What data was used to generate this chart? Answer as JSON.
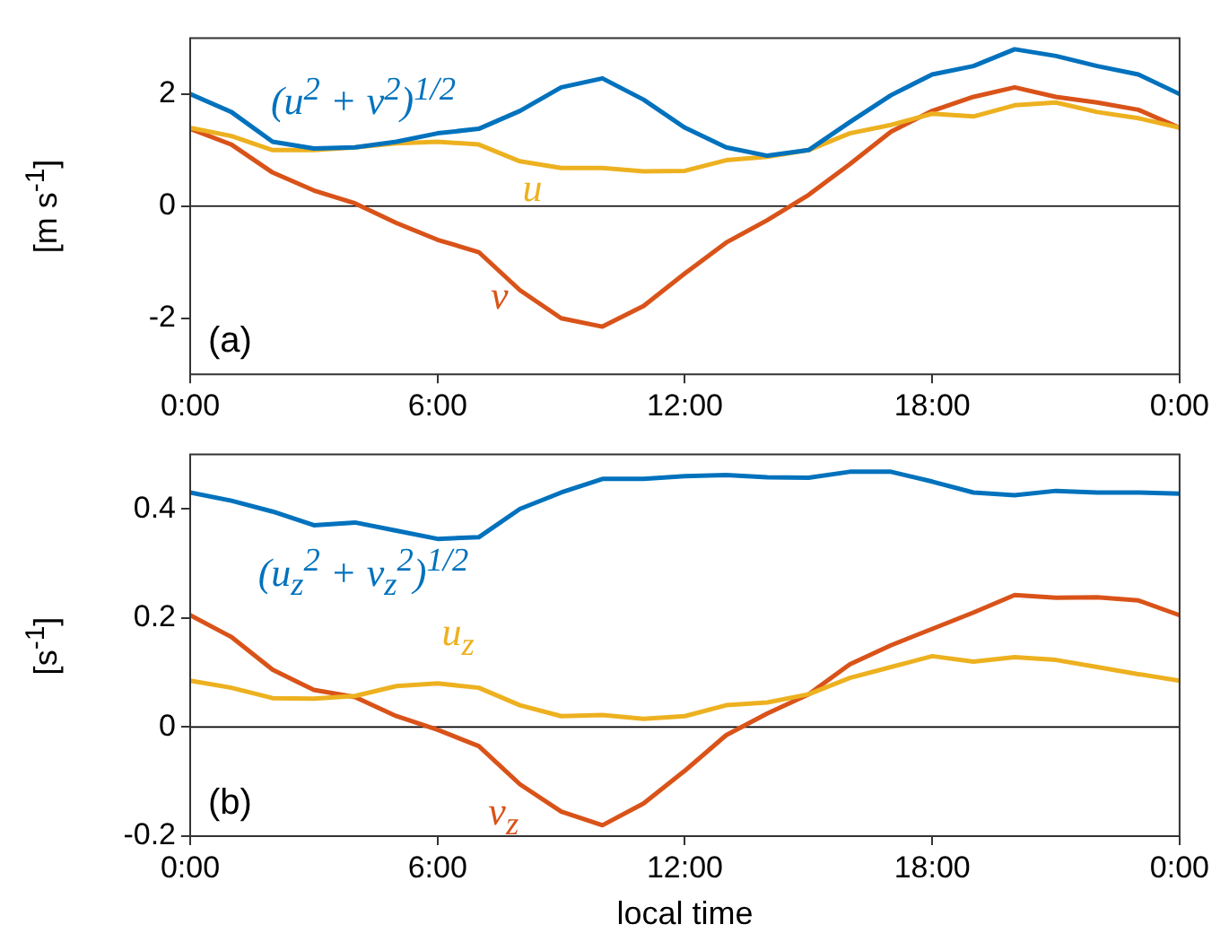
{
  "chart_data": [
    {
      "type": "line",
      "ylabel": "[m s$^{-1}$]",
      "annotations": [
        "(a)"
      ],
      "x": [
        0,
        1,
        2,
        3,
        4,
        5,
        6,
        7,
        8,
        9,
        10,
        11,
        12,
        13,
        14,
        15,
        16,
        17,
        18,
        19,
        20,
        21,
        22,
        23,
        24
      ],
      "xlim": [
        0,
        24
      ],
      "xticks": [
        {
          "value": 0,
          "label": "0:00"
        },
        {
          "value": 6,
          "label": "6:00"
        },
        {
          "value": 12,
          "label": "12:00"
        },
        {
          "value": 18,
          "label": "18:00"
        },
        {
          "value": 24,
          "label": "0:00"
        }
      ],
      "ylim": [
        -3,
        3
      ],
      "yticks": [
        -2,
        0,
        2
      ],
      "grid": false,
      "legend": false,
      "ref_lines": [
        {
          "axis": "y",
          "value": 0,
          "color": "#000000"
        }
      ],
      "series": [
        {
          "name": "(u$^{2}$ + v$^{2}$)$^{1/2}$",
          "color": "#0072bd",
          "values": [
            2.0,
            1.68,
            1.15,
            1.03,
            1.05,
            1.15,
            1.3,
            1.38,
            1.7,
            2.12,
            2.28,
            1.9,
            1.4,
            1.05,
            0.9,
            1.0,
            1.5,
            1.98,
            2.35,
            2.5,
            2.8,
            2.68,
            2.5,
            2.35,
            2.0
          ]
        },
        {
          "name": "u",
          "color": "#edb120",
          "values": [
            1.4,
            1.25,
            1.0,
            1.0,
            1.05,
            1.12,
            1.15,
            1.1,
            0.8,
            0.68,
            0.68,
            0.62,
            0.63,
            0.82,
            0.88,
            1.0,
            1.3,
            1.45,
            1.65,
            1.6,
            1.8,
            1.85,
            1.68,
            1.57,
            1.4
          ]
        },
        {
          "name": "v",
          "color": "#d95319",
          "values": [
            1.38,
            1.1,
            0.6,
            0.28,
            0.05,
            -0.3,
            -0.6,
            -0.82,
            -1.5,
            -2.0,
            -2.15,
            -1.78,
            -1.2,
            -0.65,
            -0.25,
            0.2,
            0.75,
            1.33,
            1.7,
            1.95,
            2.12,
            1.95,
            1.85,
            1.72,
            1.4
          ]
        }
      ]
    },
    {
      "type": "line",
      "ylabel": "[s$^{-1}$]",
      "xlabel": "local time",
      "annotations": [
        "(b)"
      ],
      "x": [
        0,
        1,
        2,
        3,
        4,
        5,
        6,
        7,
        8,
        9,
        10,
        11,
        12,
        13,
        14,
        15,
        16,
        17,
        18,
        19,
        20,
        21,
        22,
        23,
        24
      ],
      "xlim": [
        0,
        24
      ],
      "xticks": [
        {
          "value": 0,
          "label": "0:00"
        },
        {
          "value": 6,
          "label": "6:00"
        },
        {
          "value": 12,
          "label": "12:00"
        },
        {
          "value": 18,
          "label": "18:00"
        },
        {
          "value": 24,
          "label": "0:00"
        }
      ],
      "ylim": [
        -0.2,
        0.5
      ],
      "yticks": [
        -0.2,
        0,
        0.2,
        0.4
      ],
      "grid": false,
      "legend": false,
      "ref_lines": [
        {
          "axis": "y",
          "value": 0,
          "color": "#000000"
        }
      ],
      "series": [
        {
          "name": "(u$_{z}$$^{2}$ + v$_{z}$$^{2}$)$^{1/2}$",
          "color": "#0072bd",
          "values": [
            0.43,
            0.415,
            0.395,
            0.37,
            0.375,
            0.36,
            0.345,
            0.348,
            0.4,
            0.43,
            0.455,
            0.455,
            0.46,
            0.462,
            0.458,
            0.457,
            0.468,
            0.468,
            0.45,
            0.43,
            0.425,
            0.433,
            0.43,
            0.43,
            0.428
          ]
        },
        {
          "name": "u$_{z}$",
          "color": "#edb120",
          "values": [
            0.085,
            0.072,
            0.053,
            0.052,
            0.057,
            0.075,
            0.08,
            0.072,
            0.04,
            0.02,
            0.022,
            0.015,
            0.02,
            0.04,
            0.045,
            0.06,
            0.09,
            0.11,
            0.13,
            0.12,
            0.128,
            0.123,
            0.11,
            0.097,
            0.085
          ]
        },
        {
          "name": "v$_{z}$",
          "color": "#d95319",
          "values": [
            0.205,
            0.165,
            0.105,
            0.068,
            0.055,
            0.02,
            -0.005,
            -0.035,
            -0.105,
            -0.155,
            -0.18,
            -0.14,
            -0.08,
            -0.015,
            0.025,
            0.06,
            0.115,
            0.15,
            0.18,
            0.21,
            0.242,
            0.237,
            0.238,
            0.232,
            0.205
          ]
        }
      ]
    }
  ]
}
